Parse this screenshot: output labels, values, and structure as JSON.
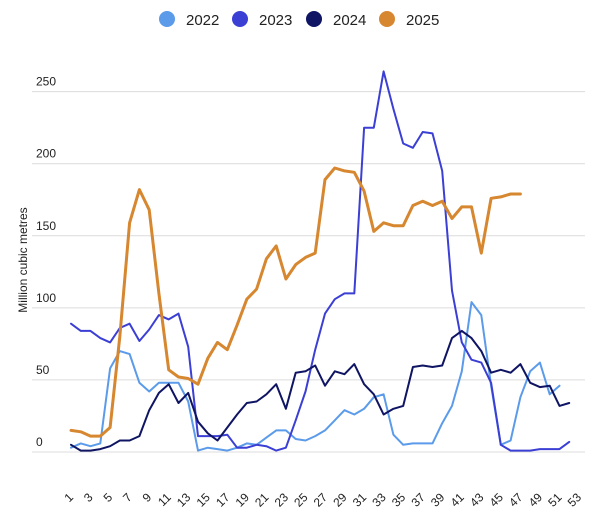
{
  "chart_data": {
    "type": "line",
    "title": "",
    "xlabel": "",
    "ylabel": "Million cubic metres",
    "xlim": [
      1,
      53
    ],
    "ylim": [
      0,
      265
    ],
    "yticks": [
      0,
      50,
      100,
      150,
      200,
      250
    ],
    "xticks": [
      1,
      3,
      5,
      7,
      9,
      11,
      13,
      15,
      17,
      19,
      21,
      23,
      25,
      27,
      29,
      31,
      33,
      35,
      37,
      39,
      41,
      43,
      45,
      47,
      49,
      51,
      53
    ],
    "grid": true,
    "legend_position": "top-center",
    "series": [
      {
        "name": "2022",
        "color": "#5b9bea",
        "values": [
          3,
          6,
          4,
          6,
          58,
          70,
          68,
          48,
          42,
          48,
          48,
          48,
          35,
          1,
          3,
          2,
          1,
          3,
          6,
          5,
          10,
          15,
          15,
          9,
          8,
          11,
          15,
          22,
          29,
          26,
          30,
          38,
          40,
          12,
          5,
          6,
          6,
          6,
          20,
          32,
          56,
          104,
          95,
          46,
          5,
          8,
          38,
          56,
          62,
          40,
          46
        ]
      },
      {
        "name": "2023",
        "color": "#3b3fd4",
        "values": [
          89,
          84,
          84,
          79,
          76,
          86,
          89,
          77,
          85,
          95,
          92,
          96,
          73,
          11,
          11,
          11,
          12,
          3,
          3,
          5,
          4,
          1,
          3,
          22,
          42,
          71,
          96,
          106,
          110,
          110,
          225,
          225,
          264,
          238,
          214,
          211,
          222,
          221,
          195,
          112,
          76,
          64,
          62,
          48,
          5,
          1,
          1,
          1,
          2,
          2,
          2,
          7
        ]
      },
      {
        "name": "2024",
        "color": "#0f1463",
        "values": [
          5,
          1,
          1,
          2,
          4,
          8,
          8,
          11,
          29,
          41,
          47,
          34,
          41,
          21,
          13,
          8,
          17,
          26,
          34,
          35,
          40,
          47,
          30,
          55,
          56,
          60,
          46,
          56,
          54,
          61,
          47,
          40,
          26,
          30,
          32,
          59,
          60,
          59,
          60,
          79,
          84,
          79,
          70,
          55,
          57,
          55,
          61,
          48,
          45,
          46,
          32,
          34
        ]
      },
      {
        "name": "2025",
        "color": "#d6872f",
        "values": [
          15,
          14,
          11,
          11,
          17,
          80,
          159,
          182,
          168,
          110,
          57,
          52,
          51,
          47,
          65,
          76,
          71,
          88,
          106,
          113,
          134,
          143,
          120,
          130,
          135,
          138,
          189,
          197,
          195,
          194,
          181,
          153,
          159,
          157,
          157,
          171,
          174,
          171,
          174,
          162,
          170,
          170,
          138,
          176,
          177,
          179,
          179
        ]
      }
    ]
  }
}
